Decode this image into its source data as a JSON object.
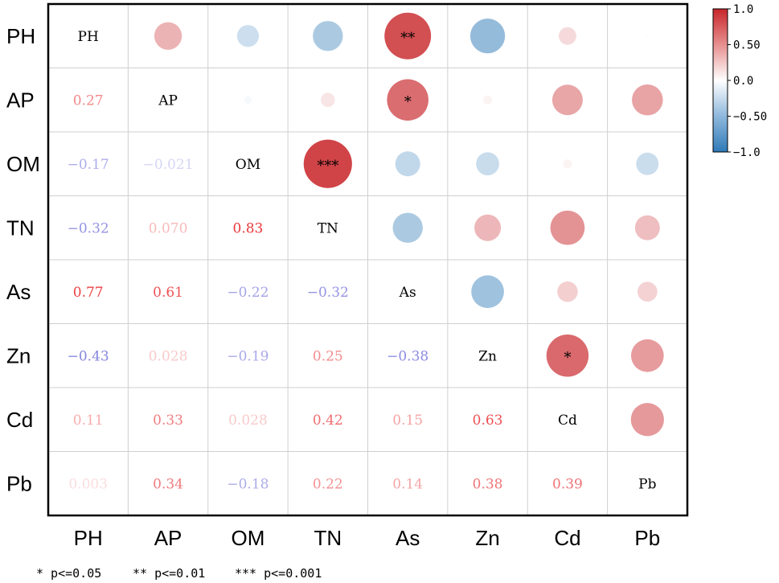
{
  "chart_data": {
    "type": "heatmap",
    "style": "correlation matrix: circles above diagonal, values below diagonal",
    "variables": [
      "PH",
      "AP",
      "OM",
      "TN",
      "As",
      "Zn",
      "Cd",
      "Pb"
    ],
    "matrix": [
      [
        1,
        0.27,
        -0.17,
        -0.32,
        0.77,
        -0.43,
        0.11,
        0.003
      ],
      [
        0.27,
        1,
        -0.021,
        0.07,
        0.61,
        0.028,
        0.33,
        0.34
      ],
      [
        -0.17,
        -0.021,
        1,
        0.83,
        -0.22,
        -0.19,
        0.028,
        -0.18
      ],
      [
        -0.32,
        0.07,
        0.83,
        1,
        -0.32,
        0.25,
        0.42,
        0.22
      ],
      [
        0.77,
        0.61,
        -0.22,
        -0.32,
        1,
        -0.38,
        0.15,
        0.14
      ],
      [
        -0.43,
        0.028,
        -0.19,
        0.25,
        -0.38,
        1,
        0.63,
        0.38
      ],
      [
        0.11,
        0.33,
        0.028,
        0.42,
        0.15,
        0.63,
        1,
        0.39
      ],
      [
        0.003,
        0.34,
        -0.18,
        0.22,
        0.14,
        0.38,
        0.39,
        1
      ]
    ],
    "lower_labels": [
      [
        "",
        "",
        "",
        "",
        "",
        "",
        "",
        ""
      ],
      [
        "0.27",
        "",
        "",
        "",
        "",
        "",
        "",
        ""
      ],
      [
        "−0.17",
        "−0.021",
        "",
        "",
        "",
        "",
        "",
        ""
      ],
      [
        "−0.32",
        "0.070",
        "0.83",
        "",
        "",
        "",
        "",
        ""
      ],
      [
        "0.77",
        "0.61",
        "−0.22",
        "−0.32",
        "",
        "",
        "",
        ""
      ],
      [
        "−0.43",
        "0.028",
        "−0.19",
        "0.25",
        "−0.38",
        "",
        "",
        ""
      ],
      [
        "0.11",
        "0.33",
        "0.028",
        "0.42",
        "0.15",
        "0.63",
        "",
        ""
      ],
      [
        "0.003",
        "0.34",
        "−0.18",
        "0.22",
        "0.14",
        "0.38",
        "0.39",
        ""
      ]
    ],
    "significance": [
      {
        "row": "PH",
        "col": "As",
        "stars": "**"
      },
      {
        "row": "AP",
        "col": "As",
        "stars": "*"
      },
      {
        "row": "OM",
        "col": "TN",
        "stars": "***"
      },
      {
        "row": "Zn",
        "col": "Cd",
        "stars": "*"
      }
    ],
    "colorbar": {
      "range": [
        -1.0,
        1.0
      ],
      "tick_labels": [
        "1.0",
        "0.50",
        "0.0",
        "−0.50",
        "−1.0"
      ],
      "tick_values": [
        1.0,
        0.5,
        0.0,
        -0.5,
        -1.0
      ],
      "colors": {
        "negative": "#2f7ab8",
        "zero": "#ffffff",
        "positive": "#c8262a"
      }
    },
    "legend": [
      "* p<=0.05",
      "** p<=0.01",
      "*** p<=0.001"
    ]
  }
}
